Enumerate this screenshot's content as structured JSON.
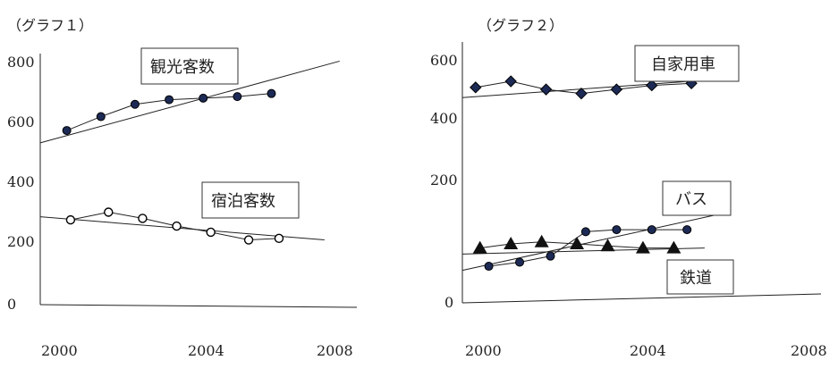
{
  "chart_data": [
    {
      "type": "line",
      "title": "（グラフ１）",
      "x_ticks": [
        "2000",
        "2004",
        "2008"
      ],
      "y_ticks": [
        "0",
        "200",
        "400",
        "600",
        "800"
      ],
      "ylim": [
        0,
        800
      ],
      "xlim": [
        2000,
        2008
      ],
      "grid": false,
      "series": [
        {
          "name": "観光客数",
          "marker": "filled-circle",
          "marker_color": "#1c2a55",
          "x": [
            2000.7,
            2001.6,
            2002.5,
            2003.4,
            2004.3,
            2005.2,
            2006.1
          ],
          "values": [
            565,
            610,
            650,
            665,
            670,
            675,
            685
          ],
          "trend": {
            "x": [
              2000,
              2007.9
            ],
            "values": [
              525,
              790
            ]
          }
        },
        {
          "name": "宿泊客数",
          "marker": "open-circle",
          "marker_color": "#ffffff",
          "x": [
            2000.8,
            2001.8,
            2002.7,
            2003.6,
            2004.5,
            2005.5,
            2006.3
          ],
          "values": [
            275,
            300,
            280,
            255,
            235,
            210,
            215
          ],
          "trend": {
            "x": [
              2000,
              2007.5
            ],
            "values": [
              285,
              210
            ]
          }
        }
      ]
    },
    {
      "type": "line",
      "title": "（グラフ２）",
      "x_ticks": [
        "2000",
        "2004",
        "2008"
      ],
      "y_ticks": [
        "0",
        "200",
        "400",
        "600"
      ],
      "ylim": [
        0,
        600
      ],
      "xlim": [
        2000,
        2008
      ],
      "grid": false,
      "series": [
        {
          "name": "自家用車",
          "marker": "diamond",
          "marker_color": "#1c2a55",
          "x": [
            2000.3,
            2001.1,
            2001.9,
            2002.7,
            2003.5,
            2004.3,
            2005.2
          ],
          "values": [
            530,
            545,
            525,
            515,
            525,
            535,
            540
          ],
          "trend": {
            "x": [
              2000,
              2005.8
            ],
            "values": [
              505,
              550
            ]
          }
        },
        {
          "name": "バス",
          "marker": "filled-circle",
          "marker_color": "#1c2a55",
          "x": [
            2000.6,
            2001.3,
            2002.0,
            2002.8,
            2003.5,
            2004.3,
            2005.1
          ],
          "values": [
            90,
            100,
            115,
            175,
            180,
            180,
            180
          ],
          "trend": {
            "x": [
              2000,
              2005.7
            ],
            "values": [
              80,
              215
            ]
          }
        },
        {
          "name": "鉄道",
          "marker": "triangle",
          "marker_color": "#111111",
          "x": [
            2000.4,
            2001.1,
            2001.8,
            2002.6,
            2003.3,
            2004.1,
            2004.8
          ],
          "values": [
            135,
            145,
            150,
            145,
            140,
            135,
            135
          ],
          "trend": {
            "x": [
              2000,
              2005.5
            ],
            "values": [
              120,
              135
            ]
          }
        }
      ]
    }
  ]
}
